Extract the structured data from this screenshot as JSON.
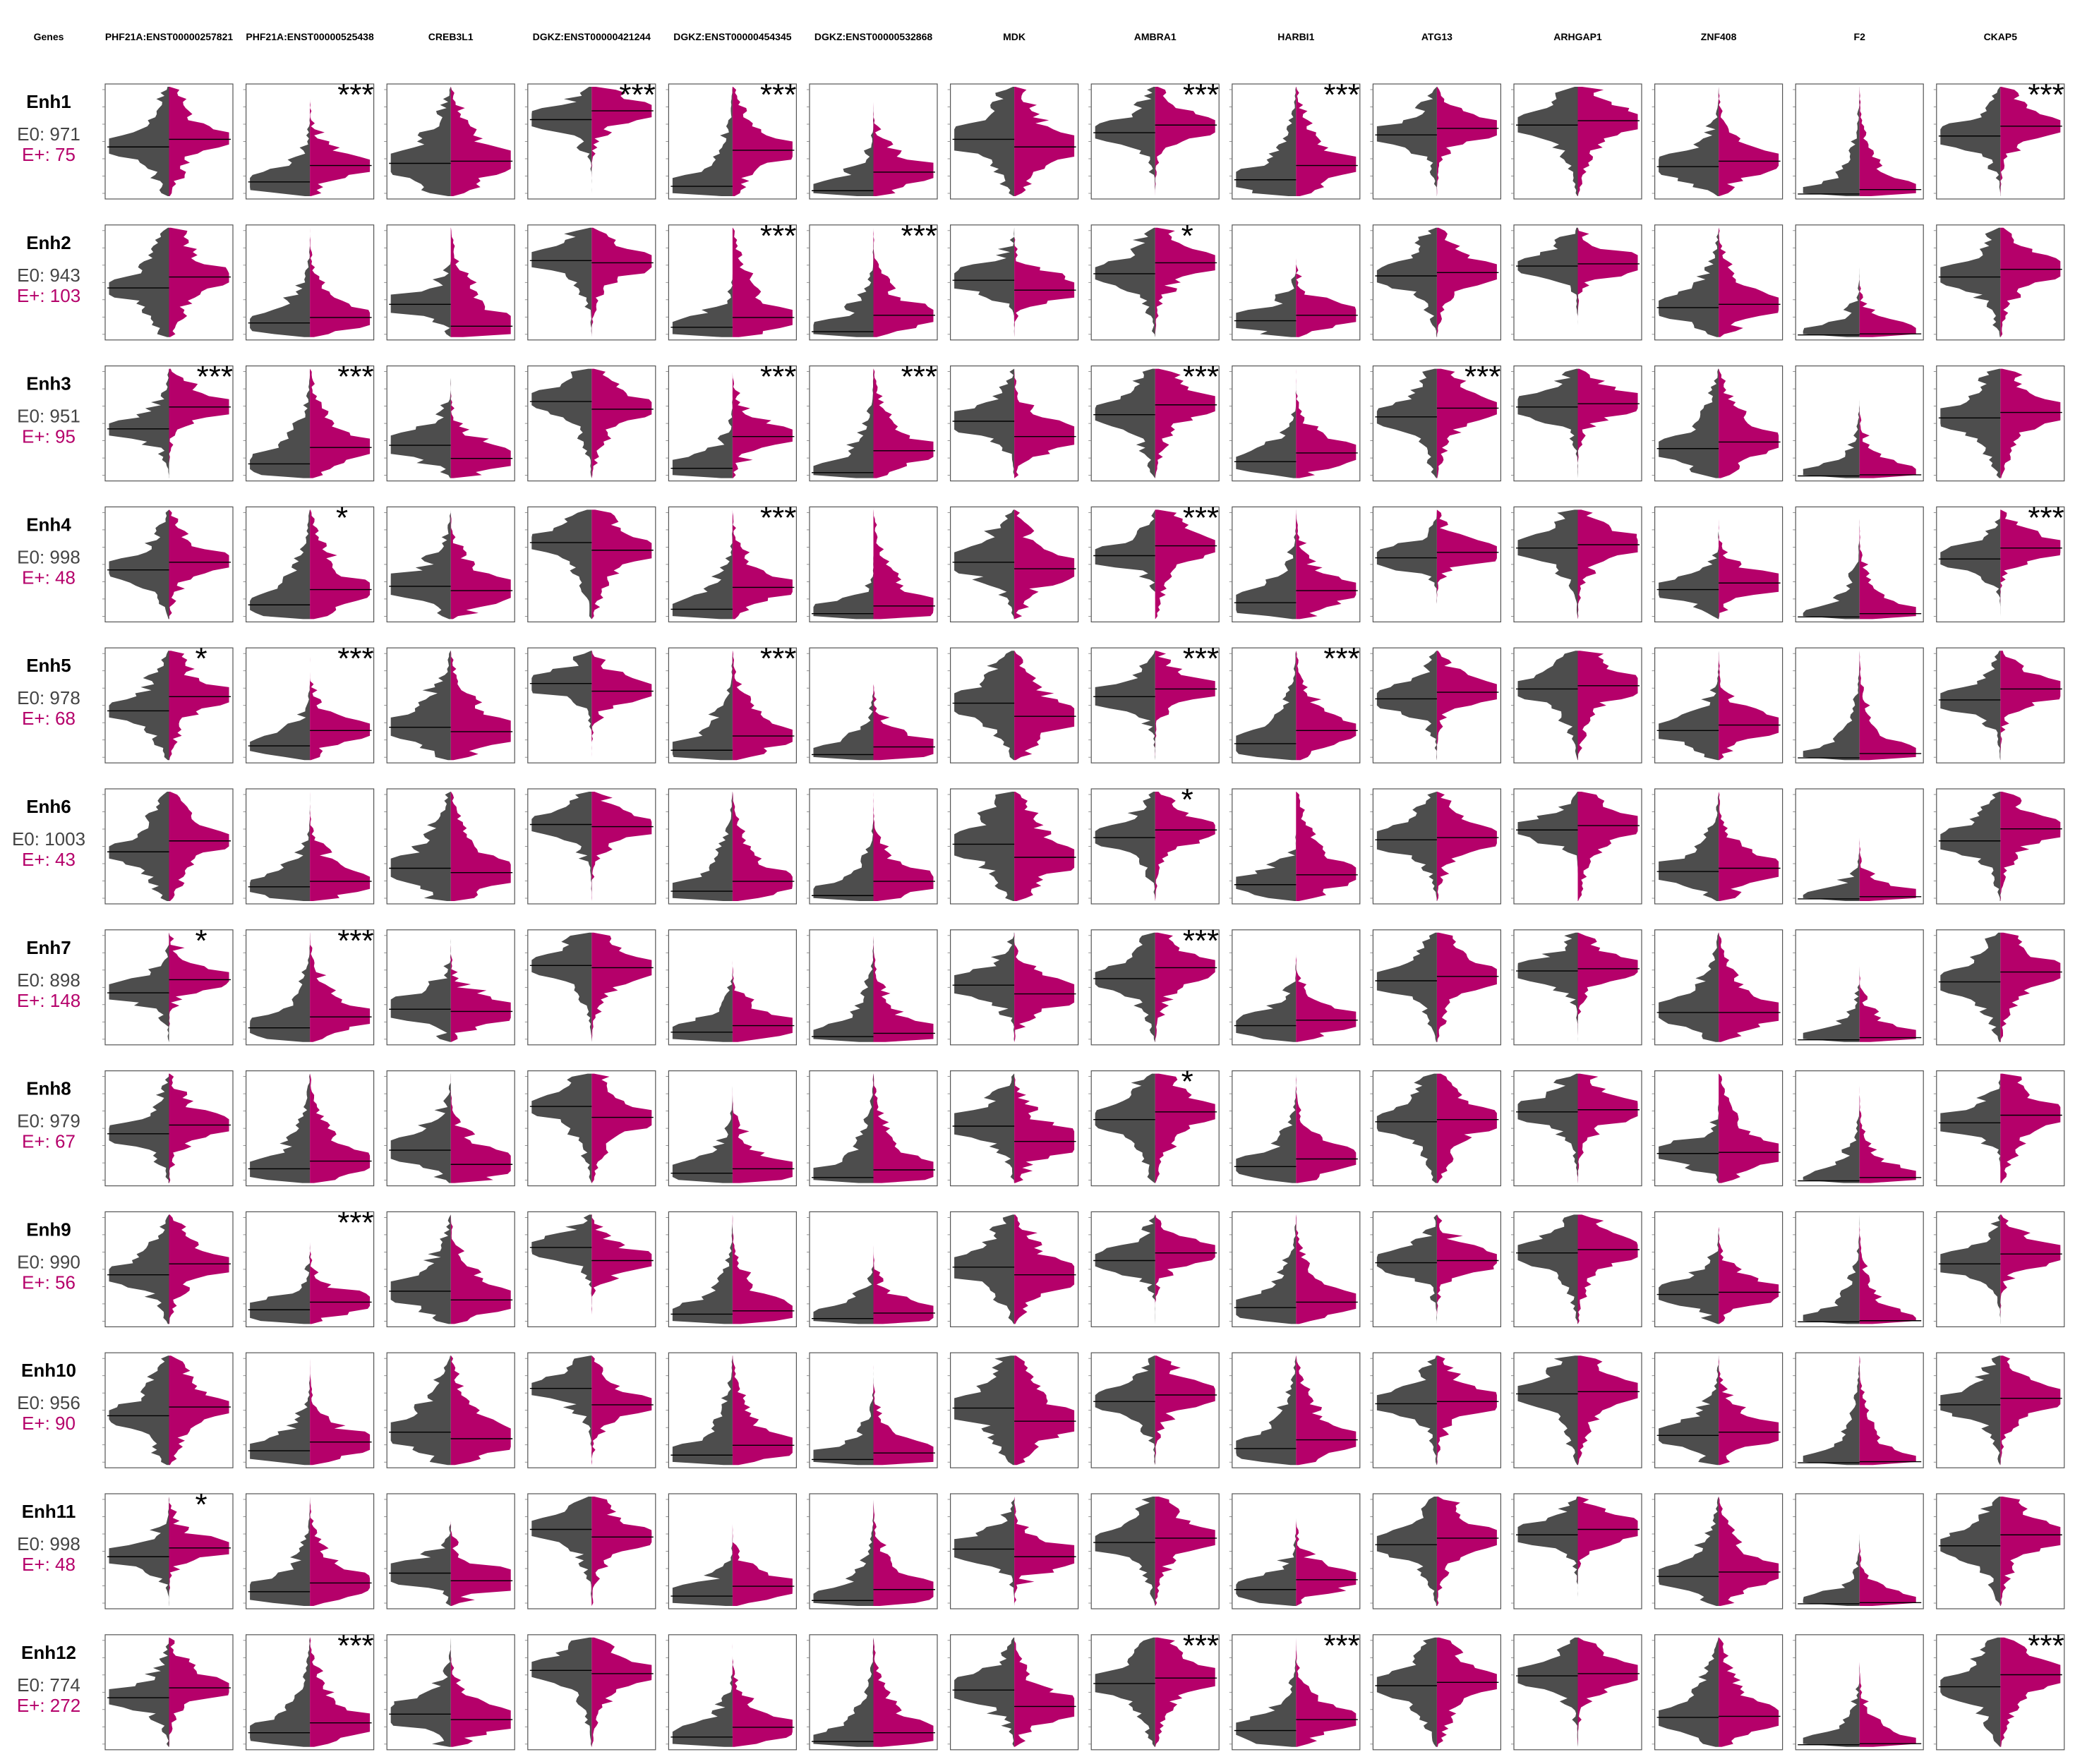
{
  "colors": {
    "E0": "#4d4d4d",
    "Eplus": "#b5006a",
    "frame": "#555555",
    "median": "#000000"
  },
  "chart_data": {
    "type": "split-violin",
    "genes_header": "Genes",
    "columns": [
      "PHF21A:ENST00000257821",
      "PHF21A:ENST00000525438",
      "CREB3L1",
      "DGKZ:ENST00000421244",
      "DGKZ:ENST00000454345",
      "DGKZ:ENST00000532868",
      "MDK",
      "AMBRA1",
      "HARBI1",
      "ATG13",
      "ARHGAP1",
      "ZNF408",
      "F2",
      "CKAP5"
    ],
    "groups": [
      "E0",
      "E+"
    ],
    "rows": [
      {
        "name": "Enh1",
        "e0": "E0: 971",
        "ep": "E+: 75"
      },
      {
        "name": "Enh2",
        "e0": "E0: 943",
        "ep": "E+: 103"
      },
      {
        "name": "Enh3",
        "e0": "E0: 951",
        "ep": "E+: 95"
      },
      {
        "name": "Enh4",
        "e0": "E0: 998",
        "ep": "E+: 48"
      },
      {
        "name": "Enh5",
        "e0": "E0: 978",
        "ep": "E+: 68"
      },
      {
        "name": "Enh6",
        "e0": "E0: 1003",
        "ep": "E+: 43"
      },
      {
        "name": "Enh7",
        "e0": "E0: 898",
        "ep": "E+: 148"
      },
      {
        "name": "Enh8",
        "e0": "E0: 979",
        "ep": "E+: 67"
      },
      {
        "name": "Enh9",
        "e0": "E0: 990",
        "ep": "E+: 56"
      },
      {
        "name": "Enh10",
        "e0": "E0: 956",
        "ep": "E+: 90"
      },
      {
        "name": "Enh11",
        "e0": "E0: 998",
        "ep": "E+: 48"
      },
      {
        "name": "Enh12",
        "e0": "E0: 774",
        "ep": "E+: 272"
      }
    ],
    "significance": [
      [
        "",
        "***",
        "",
        "***",
        "***",
        "",
        "",
        "***",
        "***",
        "",
        "",
        "",
        "",
        "***"
      ],
      [
        "",
        "",
        "",
        "",
        "***",
        "***",
        "",
        "*",
        "",
        "",
        "",
        "",
        "",
        ""
      ],
      [
        "***",
        "***",
        "",
        "",
        "***",
        "***",
        "",
        "***",
        "",
        "***",
        "",
        "",
        "",
        ""
      ],
      [
        "",
        "*",
        "",
        "",
        "***",
        "",
        "",
        "***",
        "",
        "",
        "",
        "",
        "",
        "***"
      ],
      [
        "*",
        "***",
        "",
        "",
        "***",
        "",
        "",
        "***",
        "***",
        "",
        "",
        "",
        "",
        ""
      ],
      [
        "",
        "",
        "",
        "",
        "",
        "",
        "",
        "*",
        "",
        "",
        "",
        "",
        "",
        ""
      ],
      [
        "*",
        "***",
        "",
        "",
        "",
        "",
        "",
        "***",
        "",
        "",
        "",
        "",
        "",
        ""
      ],
      [
        "",
        "",
        "",
        "",
        "",
        "",
        "",
        "*",
        "",
        "",
        "",
        "",
        "",
        ""
      ],
      [
        "",
        "***",
        "",
        "",
        "",
        "",
        "",
        "",
        "",
        "",
        "",
        "",
        "",
        ""
      ],
      [
        "",
        "",
        "",
        "",
        "",
        "",
        "",
        "",
        "",
        "",
        "",
        "",
        "",
        ""
      ],
      [
        "*",
        "",
        "",
        "",
        "",
        "",
        "",
        "",
        "",
        "",
        "",
        "",
        "",
        ""
      ],
      [
        "",
        "***",
        "",
        "",
        "",
        "",
        "",
        "***",
        "***",
        "",
        "",
        "",
        "",
        "***"
      ]
    ],
    "median_E0": [
      [
        0.45,
        0.13,
        0.3,
        0.7,
        0.09,
        0.05,
        0.52,
        0.58,
        0.15,
        0.56,
        0.65,
        0.27,
        0.02,
        0.55
      ],
      [
        0.45,
        0.13,
        0.3,
        0.7,
        0.09,
        0.05,
        0.52,
        0.58,
        0.15,
        0.56,
        0.65,
        0.27,
        0.02,
        0.55
      ],
      [
        0.45,
        0.13,
        0.3,
        0.7,
        0.09,
        0.05,
        0.52,
        0.58,
        0.15,
        0.56,
        0.65,
        0.27,
        0.02,
        0.55
      ],
      [
        0.45,
        0.13,
        0.3,
        0.7,
        0.09,
        0.05,
        0.52,
        0.58,
        0.15,
        0.56,
        0.65,
        0.27,
        0.02,
        0.55
      ],
      [
        0.45,
        0.13,
        0.3,
        0.7,
        0.09,
        0.05,
        0.52,
        0.58,
        0.15,
        0.56,
        0.65,
        0.27,
        0.02,
        0.55
      ],
      [
        0.45,
        0.13,
        0.3,
        0.7,
        0.09,
        0.05,
        0.52,
        0.58,
        0.15,
        0.56,
        0.65,
        0.27,
        0.02,
        0.55
      ],
      [
        0.45,
        0.13,
        0.3,
        0.7,
        0.09,
        0.05,
        0.52,
        0.58,
        0.15,
        0.56,
        0.65,
        0.27,
        0.02,
        0.55
      ],
      [
        0.45,
        0.13,
        0.3,
        0.7,
        0.09,
        0.05,
        0.52,
        0.58,
        0.15,
        0.56,
        0.65,
        0.27,
        0.02,
        0.55
      ],
      [
        0.45,
        0.13,
        0.3,
        0.7,
        0.09,
        0.05,
        0.52,
        0.58,
        0.15,
        0.56,
        0.65,
        0.27,
        0.02,
        0.55
      ],
      [
        0.45,
        0.13,
        0.3,
        0.7,
        0.09,
        0.05,
        0.52,
        0.58,
        0.15,
        0.56,
        0.65,
        0.27,
        0.02,
        0.55
      ],
      [
        0.45,
        0.13,
        0.3,
        0.7,
        0.09,
        0.05,
        0.52,
        0.58,
        0.15,
        0.56,
        0.65,
        0.27,
        0.02,
        0.55
      ],
      [
        0.45,
        0.13,
        0.3,
        0.7,
        0.09,
        0.05,
        0.52,
        0.58,
        0.15,
        0.56,
        0.65,
        0.27,
        0.02,
        0.55
      ]
    ],
    "median_Eplus": [
      [
        0.52,
        0.28,
        0.32,
        0.78,
        0.42,
        0.22,
        0.45,
        0.65,
        0.28,
        0.62,
        0.69,
        0.32,
        0.06,
        0.64
      ],
      [
        0.55,
        0.18,
        0.1,
        0.68,
        0.18,
        0.2,
        0.43,
        0.68,
        0.2,
        0.59,
        0.67,
        0.3,
        0.03,
        0.62
      ],
      [
        0.65,
        0.28,
        0.18,
        0.63,
        0.38,
        0.25,
        0.38,
        0.67,
        0.23,
        0.64,
        0.68,
        0.33,
        0.03,
        0.6
      ],
      [
        0.52,
        0.27,
        0.26,
        0.63,
        0.29,
        0.12,
        0.46,
        0.67,
        0.26,
        0.61,
        0.68,
        0.33,
        0.05,
        0.65
      ],
      [
        0.58,
        0.27,
        0.26,
        0.63,
        0.22,
        0.12,
        0.4,
        0.65,
        0.27,
        0.62,
        0.68,
        0.32,
        0.06,
        0.65
      ],
      [
        0.55,
        0.18,
        0.26,
        0.68,
        0.18,
        0.18,
        0.4,
        0.65,
        0.24,
        0.58,
        0.69,
        0.3,
        0.04,
        0.66
      ],
      [
        0.57,
        0.23,
        0.28,
        0.68,
        0.15,
        0.08,
        0.44,
        0.68,
        0.2,
        0.6,
        0.67,
        0.27,
        0.04,
        0.64
      ],
      [
        0.53,
        0.2,
        0.17,
        0.6,
        0.13,
        0.12,
        0.38,
        0.65,
        0.22,
        0.58,
        0.67,
        0.28,
        0.05,
        0.62
      ],
      [
        0.55,
        0.2,
        0.22,
        0.58,
        0.12,
        0.1,
        0.45,
        0.65,
        0.2,
        0.58,
        0.68,
        0.29,
        0.03,
        0.64
      ],
      [
        0.53,
        0.21,
        0.24,
        0.55,
        0.18,
        0.11,
        0.4,
        0.64,
        0.23,
        0.58,
        0.67,
        0.3,
        0.03,
        0.61
      ],
      [
        0.53,
        0.21,
        0.23,
        0.63,
        0.18,
        0.15,
        0.45,
        0.62,
        0.24,
        0.62,
        0.7,
        0.31,
        0.03,
        0.65
      ],
      [
        0.54,
        0.22,
        0.25,
        0.67,
        0.18,
        0.13,
        0.37,
        0.63,
        0.25,
        0.59,
        0.67,
        0.28,
        0.03,
        0.66
      ]
    ],
    "ylim": [
      0,
      1
    ]
  }
}
